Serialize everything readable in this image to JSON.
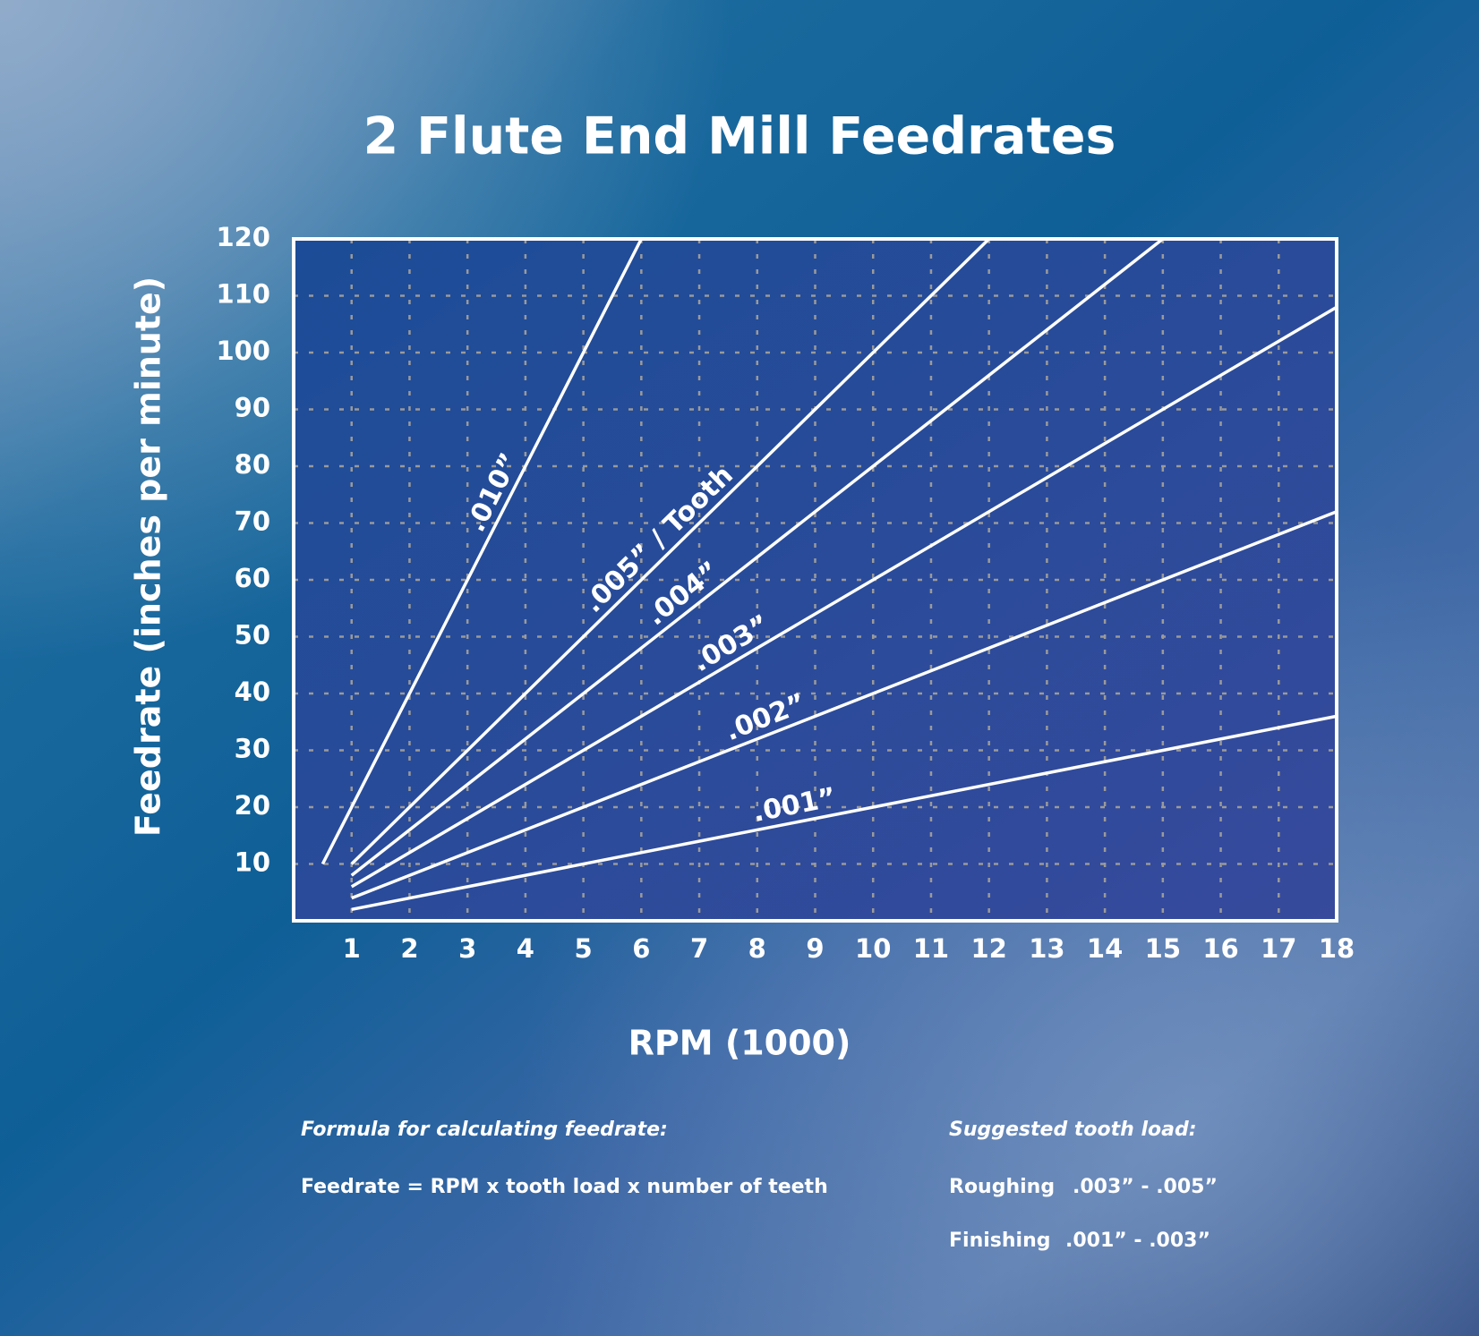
{
  "chart_data": {
    "type": "line",
    "title": "2 Flute End Mill Feedrates",
    "x_label": "RPM (1000)",
    "y_label": "Feedrate (inches per minute)",
    "xlim": [
      0,
      18
    ],
    "ylim": [
      0,
      120
    ],
    "xticks": [
      1,
      2,
      3,
      4,
      5,
      6,
      7,
      8,
      9,
      10,
      11,
      12,
      13,
      14,
      15,
      16,
      17,
      18
    ],
    "yticks": [
      10,
      20,
      30,
      40,
      50,
      60,
      70,
      80,
      90,
      100,
      110,
      120
    ],
    "grid": true,
    "series": [
      {
        "name": ".010”",
        "color": "#ffffff",
        "x": [
          0.5,
          6
        ],
        "values": [
          10,
          120
        ]
      },
      {
        "name": ".005” / Tooth",
        "color": "#ffffff",
        "x": [
          1,
          12
        ],
        "values": [
          10,
          120
        ]
      },
      {
        "name": ".004”",
        "color": "#ffffff",
        "x": [
          1,
          15
        ],
        "values": [
          8,
          120
        ]
      },
      {
        "name": ".003”",
        "color": "#ffffff",
        "x": [
          1,
          18
        ],
        "values": [
          6,
          108
        ]
      },
      {
        "name": ".002”",
        "color": "#ffffff",
        "x": [
          1,
          18
        ],
        "values": [
          4,
          72
        ]
      },
      {
        "name": ".001”",
        "color": "#ffffff",
        "x": [
          1,
          18
        ],
        "values": [
          2,
          36
        ]
      }
    ],
    "notes": {
      "formula_title": "Formula for calculating feedrate:",
      "formula": "Feedrate = RPM x tooth load x number of teeth",
      "load_title": "Suggested tooth load:",
      "roughing_label": "Roughing",
      "roughing_value": ".003” - .005”",
      "finishing_label": "Finishing",
      "finishing_value": ".001” - .003”"
    }
  }
}
